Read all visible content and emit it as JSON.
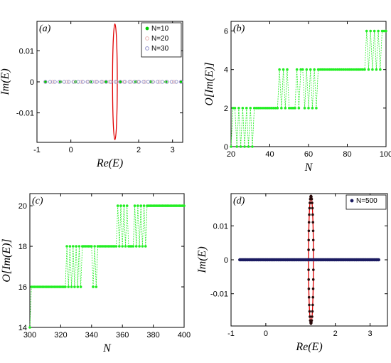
{
  "chart_data": [
    {
      "type": "scatter",
      "panel_label": "(a)",
      "xlabel": "Re(E)",
      "ylabel": "Im(E)",
      "xlim": [
        -1,
        3.3
      ],
      "ylim": [
        -0.0195,
        0.0195
      ],
      "xticks": [
        -1,
        0,
        2,
        3
      ],
      "xtick_labels": [
        "-1",
        "0",
        "2",
        "3"
      ],
      "yticks": [
        -0.01,
        0,
        0.01
      ],
      "ytick_labels": [
        "-0.01",
        "0",
        "0.01"
      ],
      "legend": {
        "position": "top-right",
        "entries": [
          "N=10",
          "N=20",
          "N=30"
        ]
      },
      "ellipse": {
        "center_x": 1.3,
        "half_width_x": 0.07,
        "half_height_y": 0.0187,
        "color": "#e00000"
      },
      "series": [
        {
          "name": "N=10",
          "color": "#00cc00",
          "marker": "dot",
          "x_range": [
            -0.75,
            3.25
          ],
          "count": 10,
          "y": 0
        },
        {
          "name": "N=20",
          "color": "#e8b4b4",
          "marker": "circle",
          "x_range": [
            -0.75,
            3.25
          ],
          "count": 20,
          "y": 0
        },
        {
          "name": "N=30",
          "color": "#9090c8",
          "marker": "circle",
          "x_range": [
            -0.75,
            3.25
          ],
          "count": 30,
          "y": 0
        }
      ]
    },
    {
      "type": "line",
      "panel_label": "(b)",
      "xlabel": "N",
      "ylabel": "O[Im(E)]",
      "xlim": [
        20,
        100
      ],
      "ylim": [
        0,
        6.5
      ],
      "xticks": [
        20,
        40,
        60,
        80,
        100
      ],
      "yticks": [
        0,
        2,
        4,
        6
      ],
      "color": "#22ee22",
      "x": [
        20,
        21,
        22,
        23,
        24,
        25,
        26,
        27,
        28,
        29,
        30,
        31,
        32,
        33,
        34,
        35,
        36,
        37,
        38,
        39,
        40,
        41,
        42,
        43,
        44,
        45,
        46,
        47,
        48,
        49,
        50,
        51,
        52,
        53,
        54,
        55,
        56,
        57,
        58,
        59,
        60,
        61,
        62,
        63,
        64,
        65,
        66,
        67,
        68,
        69,
        70,
        71,
        72,
        73,
        74,
        75,
        76,
        77,
        78,
        79,
        80,
        81,
        82,
        83,
        84,
        85,
        86,
        87,
        88,
        89,
        90,
        91,
        92,
        93,
        94,
        95,
        96,
        97,
        98,
        99,
        100
      ],
      "y": [
        0,
        2,
        2,
        0,
        2,
        0,
        2,
        0,
        2,
        0,
        2,
        0,
        2,
        2,
        2,
        2,
        2,
        2,
        2,
        2,
        2,
        2,
        2,
        2,
        2,
        4,
        2,
        4,
        2,
        4,
        2,
        2,
        2,
        2,
        4,
        2,
        4,
        4,
        2,
        4,
        2,
        4,
        2,
        4,
        2,
        4,
        4,
        4,
        4,
        4,
        4,
        4,
        4,
        4,
        4,
        4,
        4,
        4,
        4,
        4,
        4,
        4,
        4,
        4,
        4,
        4,
        4,
        4,
        4,
        4,
        6,
        4,
        6,
        4,
        6,
        4,
        6,
        4,
        6,
        6,
        6
      ]
    },
    {
      "type": "line",
      "panel_label": "(c)",
      "xlabel": "N",
      "ylabel": "O[Im(E)]",
      "xlim": [
        300,
        400
      ],
      "ylim": [
        14,
        20.6
      ],
      "xticks": [
        300,
        320,
        340,
        360,
        380,
        400
      ],
      "yticks": [
        14,
        16,
        18,
        20
      ],
      "color": "#22ee22",
      "x": [
        300,
        301,
        302,
        303,
        304,
        305,
        306,
        307,
        308,
        309,
        310,
        311,
        312,
        313,
        314,
        315,
        316,
        317,
        318,
        319,
        320,
        321,
        322,
        323,
        324,
        325,
        326,
        327,
        328,
        329,
        330,
        331,
        332,
        333,
        334,
        335,
        336,
        337,
        338,
        339,
        340,
        341,
        342,
        343,
        344,
        345,
        346,
        347,
        348,
        349,
        350,
        351,
        352,
        353,
        354,
        355,
        356,
        357,
        358,
        359,
        360,
        361,
        362,
        363,
        364,
        365,
        366,
        367,
        368,
        369,
        370,
        371,
        372,
        373,
        374,
        375,
        376,
        377,
        378,
        379,
        380,
        381,
        382,
        383,
        384,
        385,
        386,
        387,
        388,
        389,
        390,
        391,
        392,
        393,
        394,
        395,
        396,
        397,
        398,
        399,
        400
      ],
      "y": [
        14,
        16,
        16,
        16,
        16,
        16,
        16,
        16,
        16,
        16,
        16,
        16,
        16,
        16,
        16,
        16,
        16,
        16,
        16,
        16,
        16,
        16,
        16,
        16,
        18,
        16,
        18,
        16,
        18,
        16,
        18,
        16,
        18,
        16,
        18,
        18,
        18,
        18,
        18,
        18,
        18,
        16,
        18,
        16,
        18,
        18,
        18,
        18,
        18,
        18,
        18,
        18,
        18,
        18,
        18,
        18,
        18,
        20,
        18,
        20,
        18,
        20,
        18,
        20,
        18,
        18,
        18,
        18,
        20,
        18,
        20,
        18,
        20,
        18,
        20,
        18,
        20,
        20,
        20,
        20,
        20,
        20,
        20,
        20,
        20,
        20,
        20,
        20,
        20,
        20,
        20,
        20,
        20,
        20,
        20,
        20,
        20,
        20,
        20,
        20,
        20
      ]
    },
    {
      "type": "scatter",
      "panel_label": "(d)",
      "xlabel": "Re(E)",
      "ylabel": "Im(E)",
      "xlim": [
        -1,
        3.5
      ],
      "ylim": [
        -0.0195,
        0.0195
      ],
      "xticks": [
        -1,
        0,
        2,
        3
      ],
      "xtick_labels": [
        "-1",
        "0",
        "2",
        "3"
      ],
      "yticks": [
        -0.01,
        0,
        0.01
      ],
      "ytick_labels": [
        "-0.01",
        "0",
        "0.01"
      ],
      "legend": {
        "position": "top-right",
        "entries": [
          "N=500"
        ]
      },
      "ellipse": {
        "center_x": 1.3,
        "half_width_x": 0.07,
        "half_height_y": 0.0188,
        "color": "#e00000"
      },
      "series": [
        {
          "name": "N=500",
          "color": "#1a1a60",
          "marker": "dot",
          "x_range": [
            -0.75,
            3.25
          ],
          "count": 500,
          "y": 0
        }
      ]
    }
  ]
}
